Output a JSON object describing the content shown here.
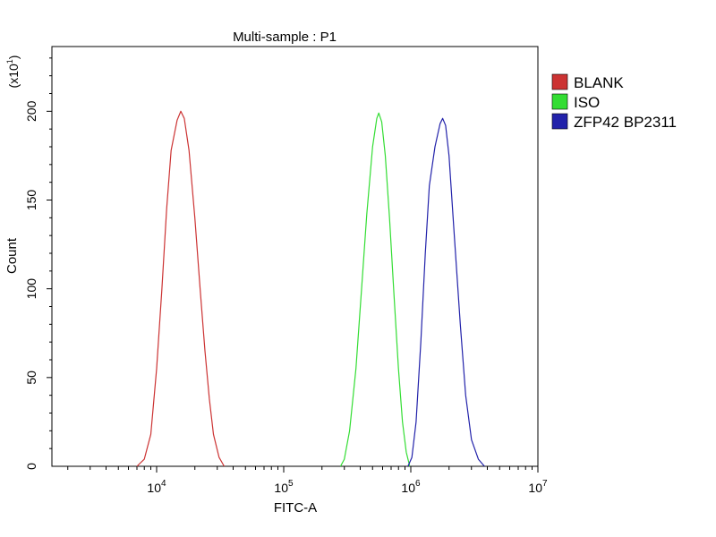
{
  "chart_data": {
    "type": "line",
    "title": "Multi-sample : P1",
    "xlabel": "FITC-A",
    "ylabel": "Count",
    "y_multiplier_base": "(x10",
    "y_multiplier_exp": "1",
    "y_multiplier_close": ")",
    "x_scale": "log",
    "xlim": [
      1500,
      10000000
    ],
    "ylim": [
      0,
      240
    ],
    "x_ticks": [
      {
        "base": "10",
        "exp": "4",
        "value": 10000
      },
      {
        "base": "10",
        "exp": "5",
        "value": 100000
      },
      {
        "base": "10",
        "exp": "6",
        "value": 1000000
      },
      {
        "base": "10",
        "exp": "7",
        "value": 10000000
      }
    ],
    "y_ticks": [
      {
        "label": "0",
        "value": 0
      },
      {
        "label": "50",
        "value": 50
      },
      {
        "label": "100",
        "value": 100
      },
      {
        "label": "150",
        "value": 150
      },
      {
        "label": "200",
        "value": 200
      }
    ],
    "grid": false,
    "legend_position": "right",
    "series": [
      {
        "name": "BLANK",
        "color": "#cc3333",
        "points": [
          [
            7000,
            0
          ],
          [
            8000,
            4
          ],
          [
            9000,
            18
          ],
          [
            10000,
            55
          ],
          [
            11000,
            100
          ],
          [
            12000,
            145
          ],
          [
            13000,
            178
          ],
          [
            14500,
            195
          ],
          [
            15500,
            200
          ],
          [
            16500,
            196
          ],
          [
            18000,
            178
          ],
          [
            20000,
            140
          ],
          [
            22000,
            100
          ],
          [
            24000,
            65
          ],
          [
            26000,
            38
          ],
          [
            28000,
            18
          ],
          [
            31000,
            5
          ],
          [
            34000,
            0
          ]
        ]
      },
      {
        "name": "ISO",
        "color": "#33dd33",
        "points": [
          [
            280000,
            0
          ],
          [
            300000,
            4
          ],
          [
            330000,
            20
          ],
          [
            370000,
            55
          ],
          [
            410000,
            100
          ],
          [
            450000,
            142
          ],
          [
            500000,
            180
          ],
          [
            540000,
            196
          ],
          [
            560000,
            199
          ],
          [
            590000,
            194
          ],
          [
            630000,
            175
          ],
          [
            680000,
            140
          ],
          [
            740000,
            95
          ],
          [
            800000,
            55
          ],
          [
            860000,
            25
          ],
          [
            920000,
            8
          ],
          [
            980000,
            0
          ]
        ]
      },
      {
        "name": "ZFP42 BP2311",
        "color": "#2222aa",
        "points": [
          [
            950000,
            0
          ],
          [
            1020000,
            5
          ],
          [
            1100000,
            25
          ],
          [
            1200000,
            70
          ],
          [
            1300000,
            120
          ],
          [
            1400000,
            158
          ],
          [
            1550000,
            180
          ],
          [
            1700000,
            193
          ],
          [
            1780000,
            196
          ],
          [
            1880000,
            192
          ],
          [
            2000000,
            175
          ],
          [
            2200000,
            130
          ],
          [
            2450000,
            80
          ],
          [
            2700000,
            40
          ],
          [
            3000000,
            15
          ],
          [
            3400000,
            4
          ],
          [
            3800000,
            0
          ]
        ]
      }
    ]
  }
}
